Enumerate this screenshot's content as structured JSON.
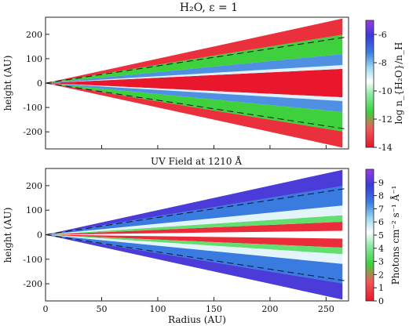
{
  "chart_data": [
    {
      "type": "heatmap",
      "title": "H₂O, ε = 1",
      "xlabel": "",
      "ylabel": "height (AU)",
      "xlim": [
        0,
        270
      ],
      "ylim": [
        -270,
        270
      ],
      "x_ticks": [],
      "y_ticks": [
        200,
        100,
        0,
        -100,
        -200
      ],
      "grid": false,
      "colorbar": {
        "label": "log n_{H₂O}/n_H",
        "ticks": [
          -6,
          -8,
          -10,
          -12,
          -14
        ],
        "range": [
          -14,
          -5
        ],
        "colormap": [
          "#e8172c",
          "#f05a5a",
          "#3cd23c",
          "#8fe9a6",
          "#ffffff",
          "#9ad7ef",
          "#3a7be0",
          "#3b3bd8",
          "#9b3be0"
        ]
      },
      "bands": [
        {
          "name": "midplane",
          "z_over_r": [
            0.0,
            0.22
          ],
          "value": -14
        },
        {
          "name": "cyan-transition",
          "z_over_r": [
            0.22,
            0.28
          ],
          "value": -9
        },
        {
          "name": "blue",
          "z_over_r": [
            0.28,
            0.45
          ],
          "value": -7.5
        },
        {
          "name": "green",
          "z_over_r": [
            0.45,
            0.75
          ],
          "value": -11.5
        },
        {
          "name": "surface-red",
          "z_over_r": [
            0.75,
            1.0
          ],
          "value": -13.5
        }
      ],
      "dashed_line": {
        "x": [
          0,
          270
        ],
        "y": [
          0,
          190
        ]
      }
    },
    {
      "type": "heatmap",
      "title": "UV Field at 1210 Å",
      "xlabel": "Radius (AU)",
      "ylabel": "height (AU)",
      "xlim": [
        0,
        270
      ],
      "ylim": [
        -270,
        270
      ],
      "x_ticks": [
        0,
        50,
        100,
        150,
        200,
        250
      ],
      "y_ticks": [
        200,
        100,
        0,
        -100,
        -200
      ],
      "grid": false,
      "colorbar": {
        "label": "Photons cm⁻² s⁻¹ Å⁻¹",
        "ticks": [
          9,
          8,
          7,
          6,
          5,
          4,
          3,
          2,
          1,
          0
        ],
        "range": [
          0,
          10
        ],
        "colormap": [
          "#e8172c",
          "#f05a5a",
          "#3cd23c",
          "#8fe9a6",
          "#ffffff",
          "#9ad7ef",
          "#3a7be0",
          "#3b3bd8",
          "#9b3be0"
        ]
      },
      "bands": [
        {
          "name": "midplane-gap",
          "z_over_r": [
            0.0,
            0.06
          ],
          "value": null
        },
        {
          "name": "red",
          "z_over_r": [
            0.06,
            0.2
          ],
          "value": 0.5
        },
        {
          "name": "green",
          "z_over_r": [
            0.2,
            0.3
          ],
          "value": 3.5
        },
        {
          "name": "cyan",
          "z_over_r": [
            0.3,
            0.45
          ],
          "value": 5.5
        },
        {
          "name": "blue",
          "z_over_r": [
            0.45,
            0.75
          ],
          "value": 7.5
        },
        {
          "name": "purple",
          "z_over_r": [
            0.75,
            1.0
          ],
          "value": 9
        }
      ],
      "dashed_line": {
        "x": [
          0,
          270
        ],
        "y": [
          0,
          190
        ]
      }
    }
  ]
}
